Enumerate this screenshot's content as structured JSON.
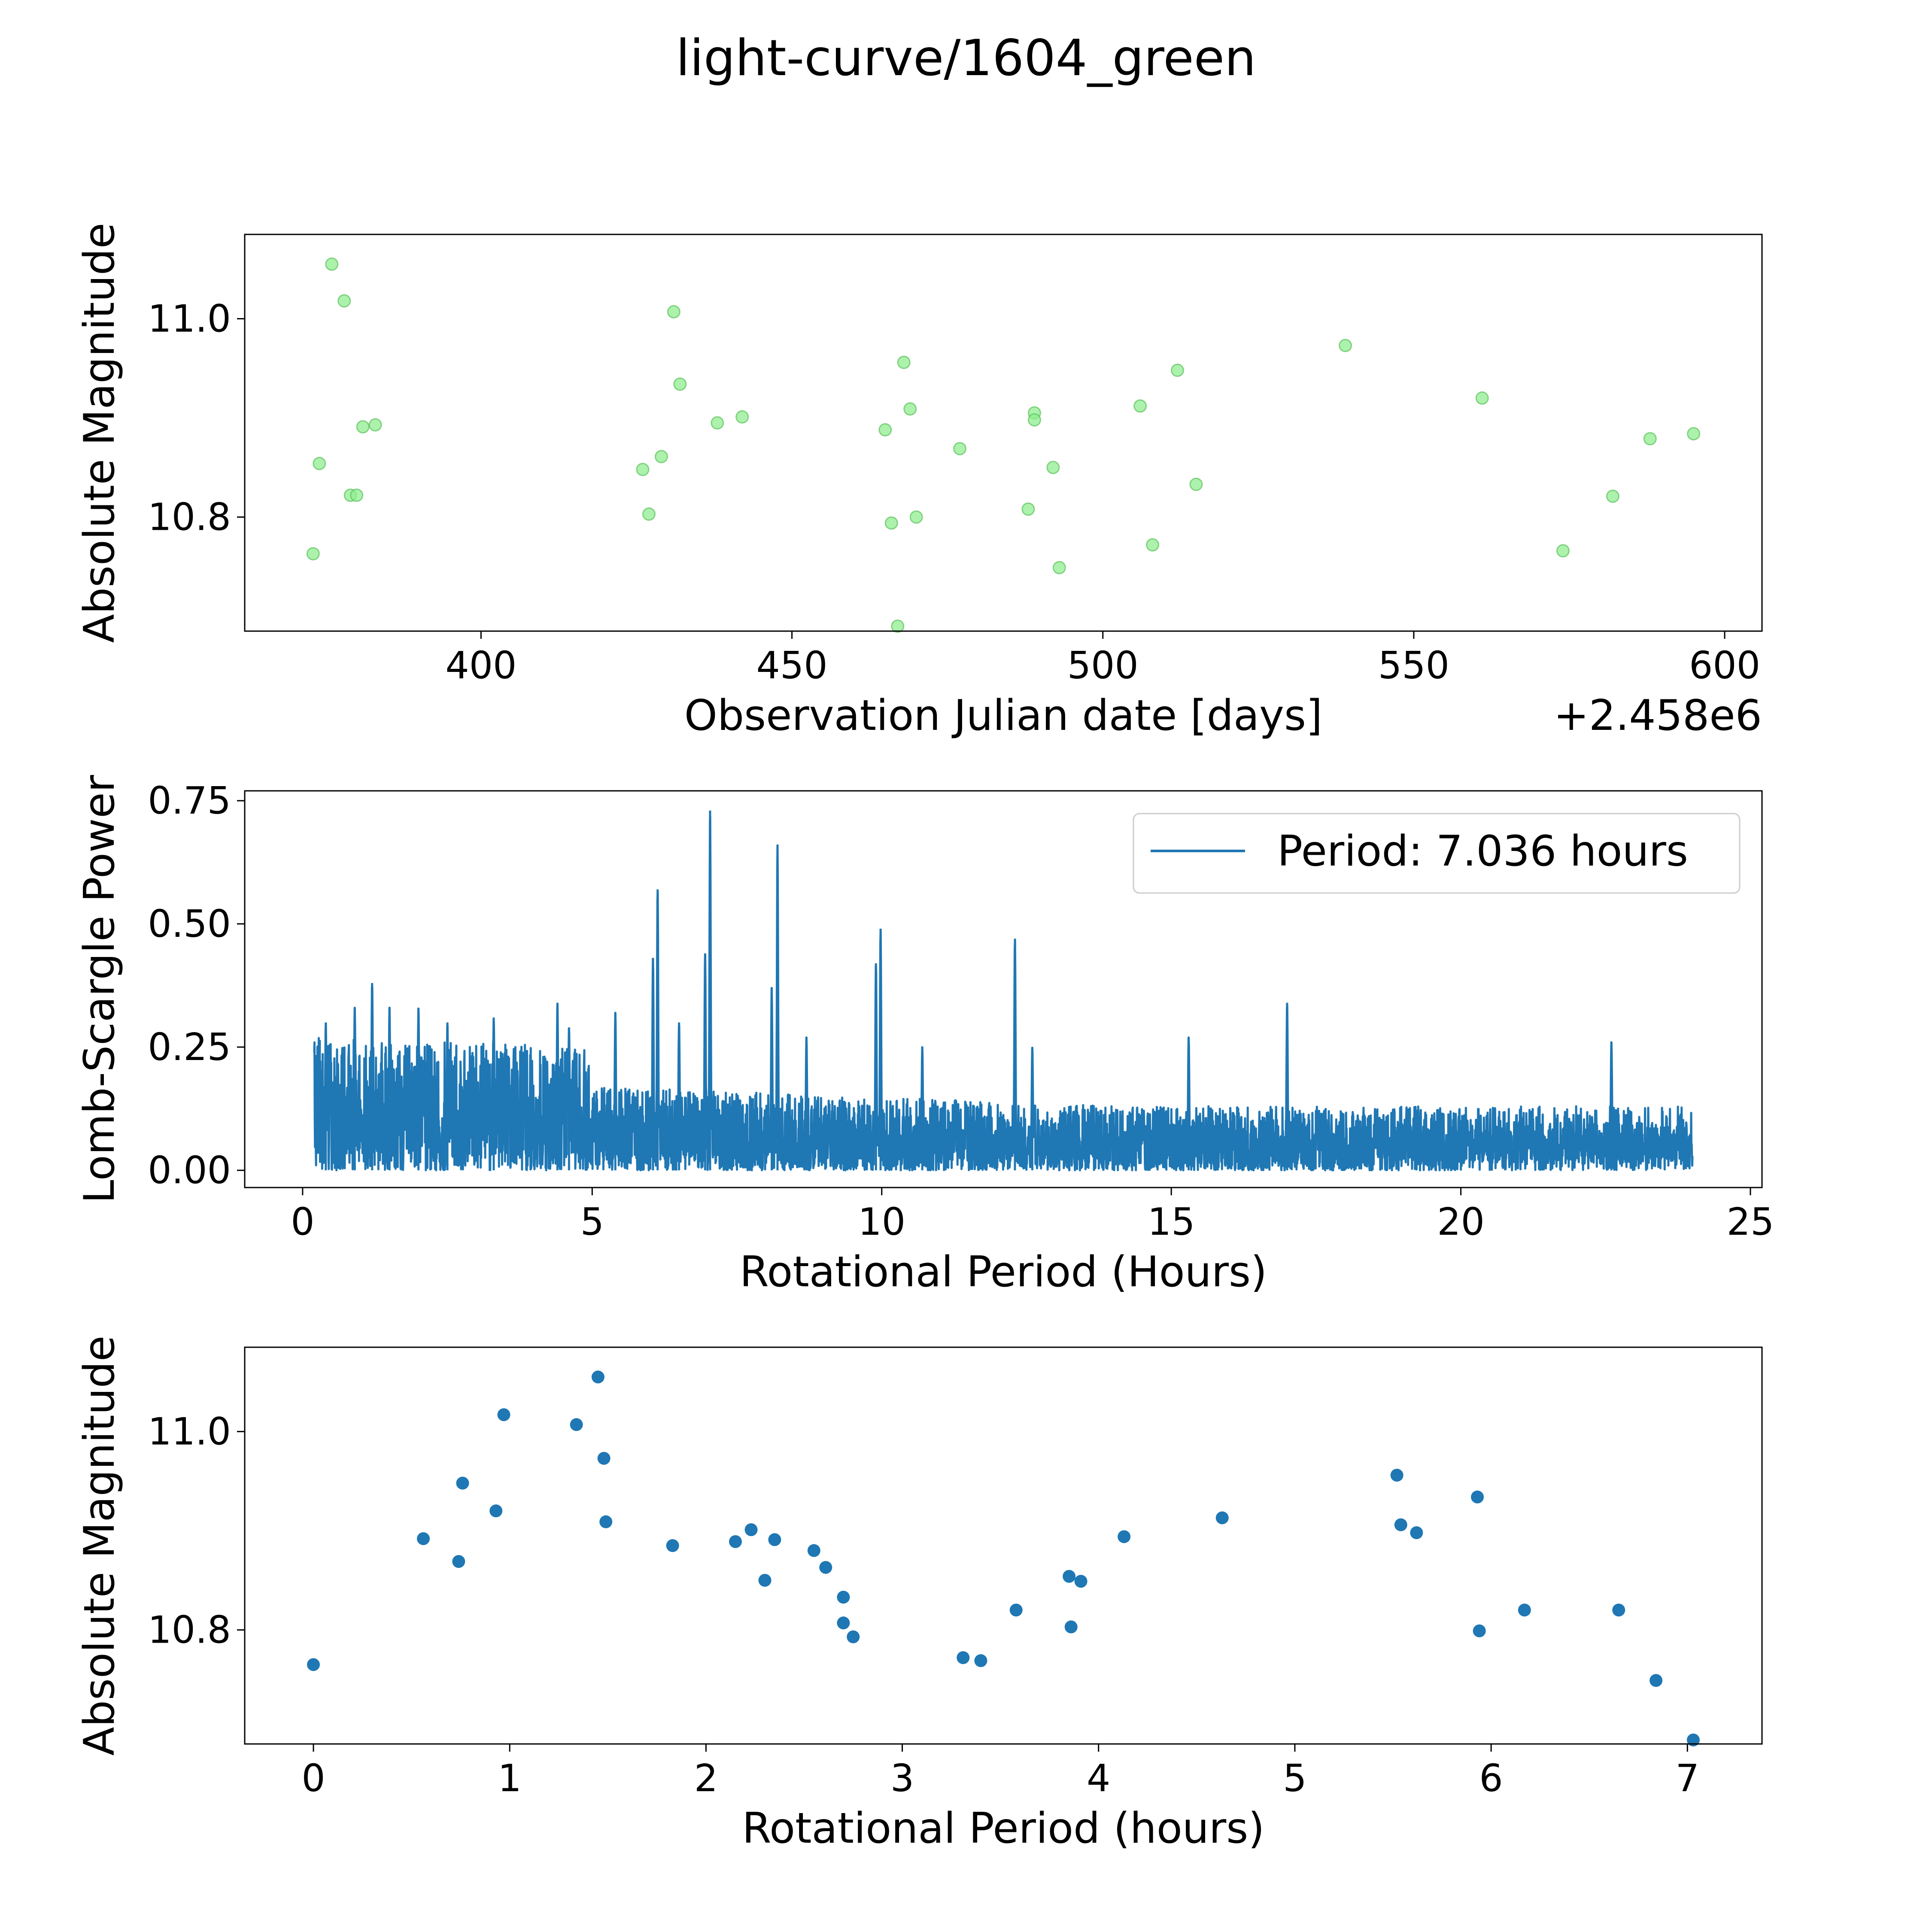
{
  "figure": {
    "title": "light-curve/1604_green"
  },
  "chart_data": [
    {
      "type": "scatter",
      "name": "light-curve-observations",
      "xlabel": "Observation Julian date [days]",
      "ylabel": "Absolute Magnitude",
      "x_offset_label": "+2.458e6",
      "xlim": [
        362,
        606
      ],
      "ylim": [
        10.685,
        11.085
      ],
      "xticks": [
        400,
        450,
        500,
        550,
        600
      ],
      "yticks": [
        10.8,
        11.0
      ],
      "ytick_labels": [
        "10.8",
        "11.0"
      ],
      "point_color": "#90ee90",
      "series": [
        {
          "name": "green",
          "x": [
            373,
            374,
            376,
            378,
            379,
            380,
            381,
            383,
            426,
            427,
            429,
            431,
            432,
            438,
            442,
            465,
            466,
            467,
            468,
            469,
            470,
            477,
            488,
            489,
            489,
            492,
            493,
            506,
            508,
            512,
            515,
            539,
            561,
            574,
            582,
            588,
            595
          ],
          "y": [
            10.763,
            10.854,
            11.055,
            11.018,
            10.822,
            10.822,
            10.891,
            10.893,
            10.848,
            10.803,
            10.861,
            11.007,
            10.934,
            10.895,
            10.901,
            10.888,
            10.794,
            10.69,
            10.956,
            10.909,
            10.8,
            10.869,
            10.808,
            10.905,
            10.898,
            10.85,
            10.749,
            10.912,
            10.772,
            10.948,
            10.833,
            10.973,
            10.92,
            10.766,
            10.821,
            10.879,
            10.884
          ]
        }
      ]
    },
    {
      "type": "line",
      "name": "lomb-scargle-periodogram",
      "xlabel": "Rotational Period (Hours)",
      "ylabel": "Lomb-Scargle Power",
      "xlim": [
        -1.0,
        25.2
      ],
      "ylim": [
        -0.035,
        0.77
      ],
      "xticks": [
        0,
        5,
        10,
        15,
        20,
        25
      ],
      "yticks": [
        0.0,
        0.25,
        0.5,
        0.75
      ],
      "ytick_labels": [
        "0.00",
        "0.25",
        "0.50",
        "0.75"
      ],
      "line_color": "#1f77b4",
      "legend": {
        "label": "Period: 7.036 hours",
        "placement": "top-right"
      },
      "period_range_hours": [
        0.2,
        24.0
      ],
      "peaks": [
        {
          "period": 0.4,
          "power": 0.3
        },
        {
          "period": 0.9,
          "power": 0.33
        },
        {
          "period": 1.2,
          "power": 0.38
        },
        {
          "period": 1.5,
          "power": 0.33
        },
        {
          "period": 2.0,
          "power": 0.33
        },
        {
          "period": 2.5,
          "power": 0.3
        },
        {
          "period": 3.3,
          "power": 0.31
        },
        {
          "period": 4.4,
          "power": 0.34
        },
        {
          "period": 4.6,
          "power": 0.29
        },
        {
          "period": 5.4,
          "power": 0.32
        },
        {
          "period": 6.05,
          "power": 0.43
        },
        {
          "period": 6.13,
          "power": 0.57
        },
        {
          "period": 6.5,
          "power": 0.3
        },
        {
          "period": 6.95,
          "power": 0.44
        },
        {
          "period": 7.036,
          "power": 0.73
        },
        {
          "period": 8.1,
          "power": 0.37
        },
        {
          "period": 8.2,
          "power": 0.66
        },
        {
          "period": 8.7,
          "power": 0.27
        },
        {
          "period": 9.9,
          "power": 0.42
        },
        {
          "period": 9.98,
          "power": 0.49
        },
        {
          "period": 10.7,
          "power": 0.25
        },
        {
          "period": 12.3,
          "power": 0.47
        },
        {
          "period": 12.6,
          "power": 0.25
        },
        {
          "period": 15.3,
          "power": 0.27
        },
        {
          "period": 17.0,
          "power": 0.34
        },
        {
          "period": 22.6,
          "power": 0.26
        }
      ]
    },
    {
      "type": "scatter",
      "name": "phase-folded-light-curve",
      "xlabel": "Rotational Period (hours)",
      "ylabel": "Absolute Magnitude",
      "xlim": [
        -0.35,
        7.38
      ],
      "ylim": [
        10.685,
        11.085
      ],
      "xticks": [
        0,
        1,
        2,
        3,
        4,
        5,
        6,
        7
      ],
      "yticks": [
        10.8,
        11.0
      ],
      "ytick_labels": [
        "10.8",
        "11.0"
      ],
      "point_color": "#1f77b4",
      "series": [
        {
          "name": "folded",
          "x": [
            0.0,
            0.56,
            0.74,
            0.76,
            0.93,
            0.97,
            1.34,
            1.45,
            1.48,
            1.49,
            1.83,
            2.15,
            2.23,
            2.3,
            2.35,
            2.55,
            2.61,
            2.7,
            2.7,
            2.75,
            3.31,
            3.4,
            3.58,
            3.85,
            3.86,
            3.91,
            4.13,
            4.63,
            5.52,
            5.54,
            5.62,
            5.93,
            5.94,
            6.17,
            6.65,
            6.84,
            7.03
          ],
          "y": [
            10.765,
            10.892,
            10.869,
            10.948,
            10.92,
            11.017,
            11.007,
            11.055,
            10.973,
            10.909,
            10.885,
            10.889,
            10.901,
            10.85,
            10.891,
            10.88,
            10.863,
            10.833,
            10.807,
            10.793,
            10.772,
            10.769,
            10.82,
            10.854,
            10.803,
            10.849,
            10.894,
            10.913,
            10.956,
            10.906,
            10.898,
            10.934,
            10.799,
            10.82,
            10.82,
            10.749,
            10.689
          ]
        }
      ]
    }
  ]
}
